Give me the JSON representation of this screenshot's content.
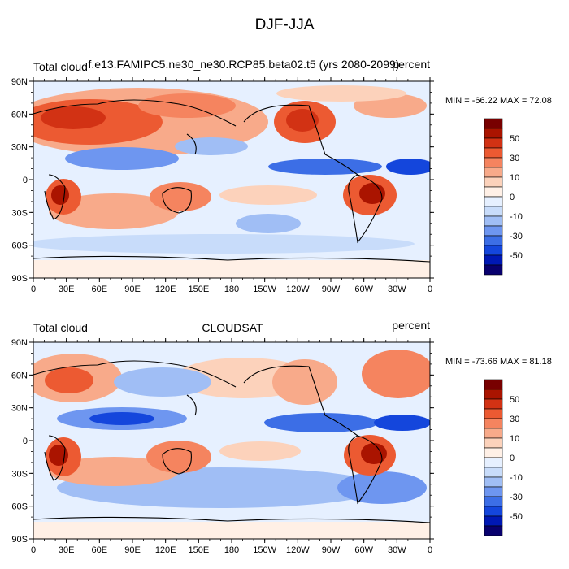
{
  "title": "DJF-JJA",
  "colors": [
    "#08006e",
    "#0018b4",
    "#1446dc",
    "#3c6ee6",
    "#6e96f0",
    "#a0bef5",
    "#c8dcfa",
    "#e6f0ff",
    "#fff0e6",
    "#fcd2bb",
    "#f8aa8a",
    "#f5845f",
    "#ec5a32",
    "#d23214",
    "#aa1400",
    "#780000"
  ],
  "colorbar": {
    "labels": [
      "50",
      "30",
      "10",
      "0",
      "-10",
      "-30",
      "-50"
    ]
  },
  "lat_ticks": [
    "90N",
    "60N",
    "30N",
    "0",
    "30S",
    "60S",
    "90S"
  ],
  "lon_ticks": [
    "0",
    "30E",
    "60E",
    "90E",
    "120E",
    "150E",
    "180",
    "150W",
    "120W",
    "90W",
    "60W",
    "30W",
    "0"
  ],
  "panels": [
    {
      "left_label": "Total cloud",
      "center_label": "f.e13.FAMIPC5.ne30_ne30.RCP85.beta02.t5 (yrs 2080-2099)",
      "right_label": "percent",
      "stats": "MIN = -66.22 MAX =  72.08"
    },
    {
      "left_label": "Total cloud",
      "center_label": "CLOUDSAT",
      "right_label": "percent",
      "stats": "MIN = -73.66 MAX =  81.18"
    }
  ]
}
